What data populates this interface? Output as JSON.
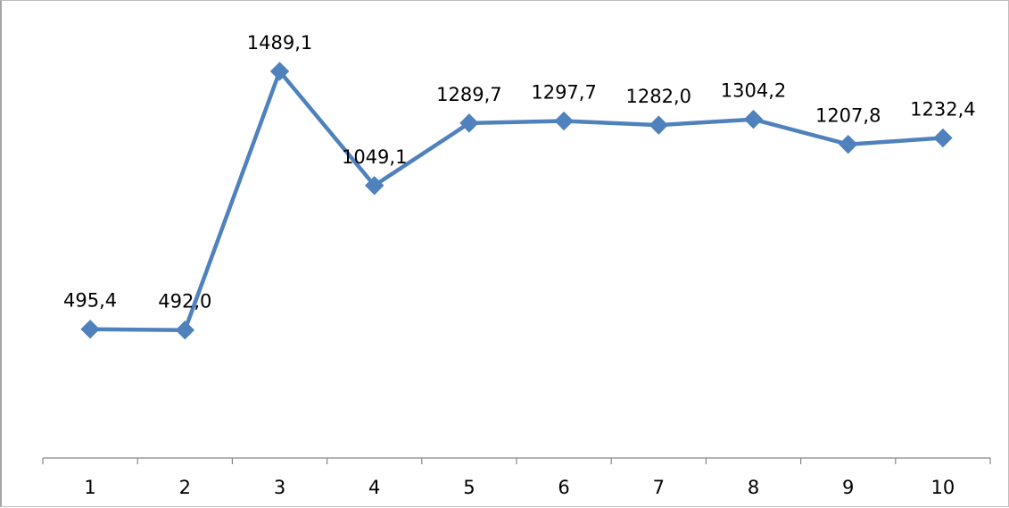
{
  "chart_data": {
    "type": "line",
    "title": "",
    "xlabel": "",
    "ylabel": "",
    "categories": [
      "1",
      "2",
      "3",
      "4",
      "5",
      "6",
      "7",
      "8",
      "9",
      "10"
    ],
    "series": [
      {
        "values": [
          495.4,
          492.0,
          1489.1,
          1049.1,
          1289.7,
          1297.7,
          1282.0,
          1304.2,
          1207.8,
          1232.4
        ],
        "labels": [
          "495,4",
          "492,0",
          "1489,1",
          "1049,1",
          "1289,7",
          "1297,7",
          "1282,0",
          "1304,2",
          "1207,8",
          "1232,4"
        ],
        "color": "#4f81bd",
        "marker": "diamond"
      }
    ],
    "ylim": [
      -1,
      1740
    ],
    "grid": false,
    "legend": "none"
  }
}
